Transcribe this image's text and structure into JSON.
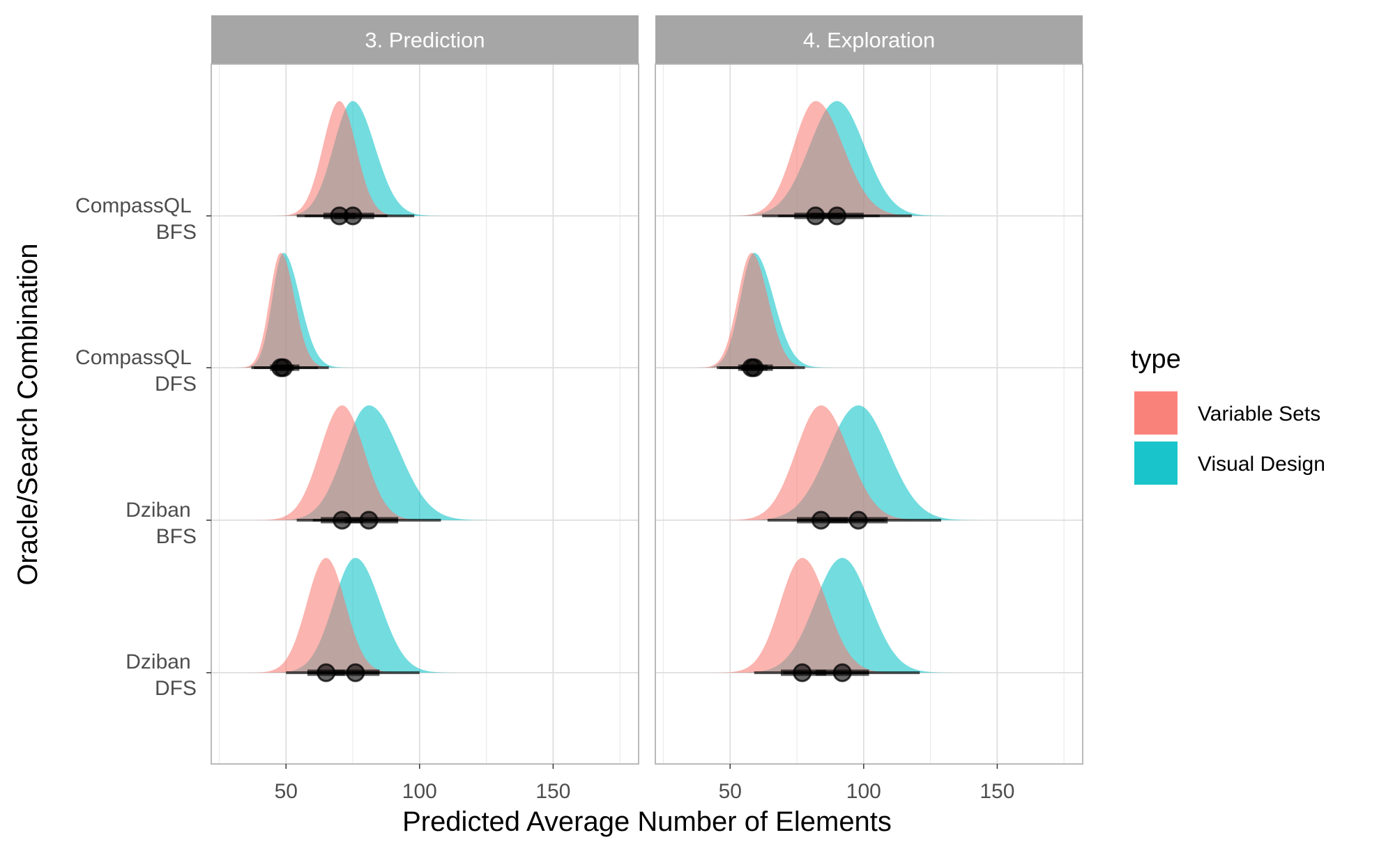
{
  "chart_data": {
    "type": "area",
    "subtype": "half-eye density with point interval",
    "xlabel": "Predicted Average Number of Elements",
    "ylabel": "Oracle/Search Combination",
    "xlim": [
      22,
      182
    ],
    "x_ticks": [
      50,
      100,
      150
    ],
    "x_tick_labels": [
      "50",
      "100",
      "150"
    ],
    "grid": true,
    "legend": {
      "title": "type",
      "placement": "right",
      "entries": [
        {
          "label": "Variable Sets",
          "color": "#F8766D"
        },
        {
          "label": "Visual Design",
          "color": "#00BFC4"
        }
      ]
    },
    "rows": [
      {
        "label_line1": "CompassQL",
        "label_line2": "BFS"
      },
      {
        "label_line1": "CompassQL",
        "label_line2": "DFS"
      },
      {
        "label_line1": "Dziban",
        "label_line2": "BFS"
      },
      {
        "label_line1": "Dziban",
        "label_line2": "DFS"
      }
    ],
    "facets": [
      {
        "title": "3. Prediction",
        "groups": [
          {
            "row": 0,
            "type": "Variable Sets",
            "median": 70,
            "q66": [
              64,
              76
            ],
            "q95": [
              54,
              88
            ]
          },
          {
            "row": 0,
            "type": "Visual Design",
            "median": 75,
            "q66": [
              68,
              83
            ],
            "q95": [
              57,
              98
            ]
          },
          {
            "row": 1,
            "type": "Variable Sets",
            "median": 48,
            "q66": [
              44,
              53
            ],
            "q95": [
              37,
              62
            ]
          },
          {
            "row": 1,
            "type": "Visual Design",
            "median": 49,
            "q66": [
              45,
              55
            ],
            "q95": [
              38,
              66
            ]
          },
          {
            "row": 2,
            "type": "Variable Sets",
            "median": 71,
            "q66": [
              63,
              79
            ],
            "q95": [
              54,
              92
            ]
          },
          {
            "row": 2,
            "type": "Visual Design",
            "median": 81,
            "q66": [
              72,
              92
            ],
            "q95": [
              60,
              108
            ]
          },
          {
            "row": 3,
            "type": "Variable Sets",
            "median": 65,
            "q66": [
              58,
              72
            ],
            "q95": [
              50,
              85
            ]
          },
          {
            "row": 3,
            "type": "Visual Design",
            "median": 76,
            "q66": [
              68,
              85
            ],
            "q95": [
              58,
              100
            ]
          }
        ]
      },
      {
        "title": "4. Exploration",
        "groups": [
          {
            "row": 0,
            "type": "Variable Sets",
            "median": 82,
            "q66": [
              74,
              92
            ],
            "q95": [
              62,
              106
            ]
          },
          {
            "row": 0,
            "type": "Visual Design",
            "median": 90,
            "q66": [
              80,
              100
            ],
            "q95": [
              68,
              118
            ]
          },
          {
            "row": 1,
            "type": "Variable Sets",
            "median": 58,
            "q66": [
              53,
              64
            ],
            "q95": [
              45,
              74
            ]
          },
          {
            "row": 1,
            "type": "Visual Design",
            "median": 59,
            "q66": [
              54,
              66
            ],
            "q95": [
              46,
              78
            ]
          },
          {
            "row": 2,
            "type": "Variable Sets",
            "median": 84,
            "q66": [
              75,
              94
            ],
            "q95": [
              64,
              108
            ]
          },
          {
            "row": 2,
            "type": "Visual Design",
            "median": 98,
            "q66": [
              87,
              109
            ],
            "q95": [
              75,
              129
            ]
          },
          {
            "row": 3,
            "type": "Variable Sets",
            "median": 77,
            "q66": [
              69,
              86
            ],
            "q95": [
              59,
              102
            ]
          },
          {
            "row": 3,
            "type": "Visual Design",
            "median": 92,
            "q66": [
              82,
              102
            ],
            "q95": [
              70,
              121
            ]
          }
        ]
      }
    ]
  }
}
